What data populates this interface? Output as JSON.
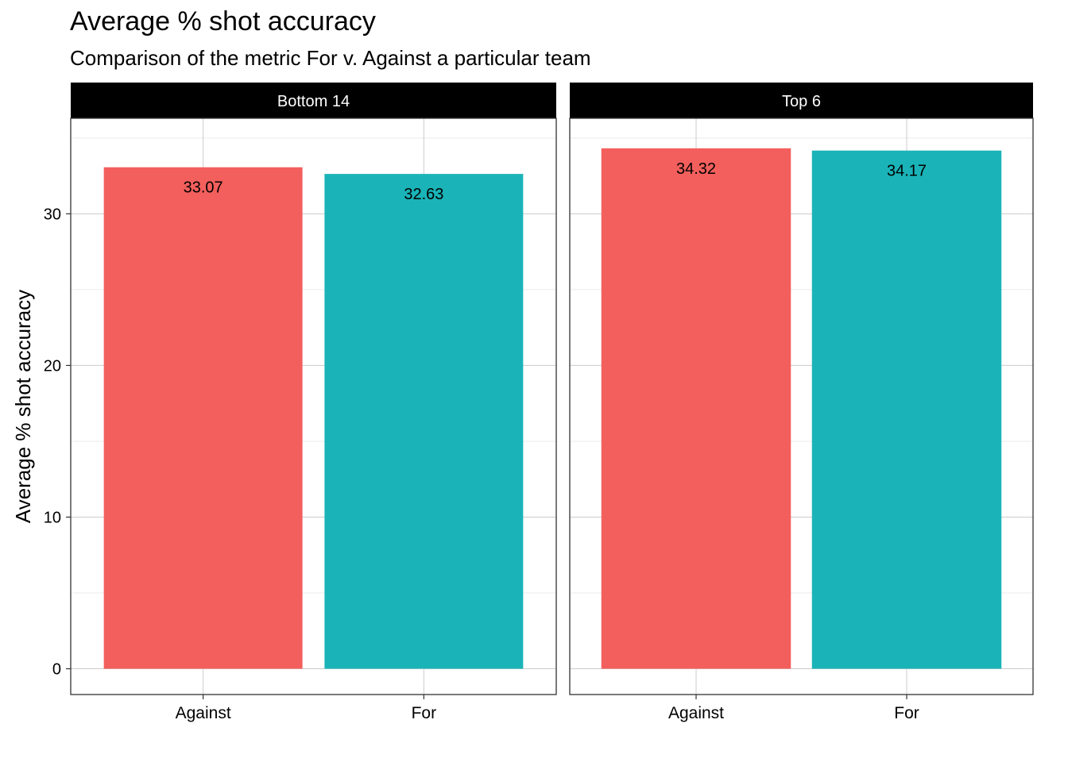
{
  "chart_data": {
    "type": "bar",
    "title": "Average % shot accuracy",
    "subtitle": "Comparison of the metric For v. Against a particular team",
    "ylabel": "Average % shot accuracy",
    "xlabel": "",
    "ylim": [
      -1.7,
      36.3
    ],
    "yticks": [
      0,
      10,
      20,
      30
    ],
    "grid": true,
    "legend": "none",
    "colors": {
      "Against": "#F35F5C",
      "For": "#1AB4B8"
    },
    "facets": [
      {
        "name": "Bottom 14",
        "categories": [
          "Against",
          "For"
        ],
        "values": [
          33.07,
          32.63
        ],
        "labels": [
          "33.07",
          "32.63"
        ]
      },
      {
        "name": "Top 6",
        "categories": [
          "Against",
          "For"
        ],
        "values": [
          34.32,
          34.17
        ],
        "labels": [
          "34.32",
          "34.17"
        ]
      }
    ]
  }
}
